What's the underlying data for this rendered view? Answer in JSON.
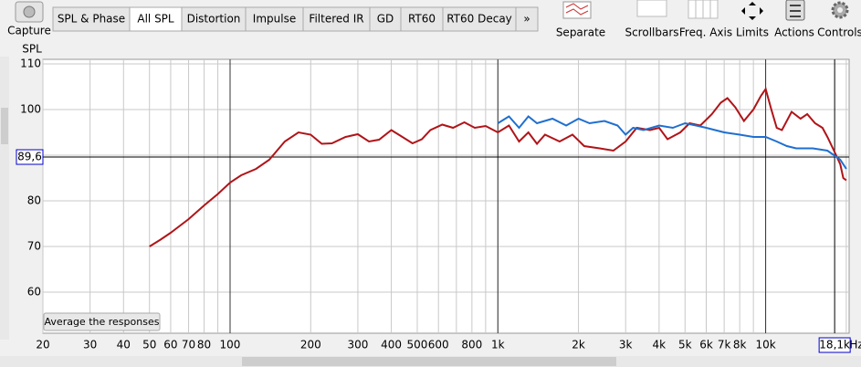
{
  "toolbar": {
    "capture": "Capture",
    "tabs": [
      "SPL & Phase",
      "All SPL",
      "Distortion",
      "Impulse",
      "Filtered IR",
      "GD",
      "RT60",
      "RT60 Decay",
      "»"
    ],
    "selected_tab": 1,
    "buttons": [
      "Separate",
      "Scrollbars",
      "Freq. Axis",
      "Limits",
      "Actions",
      "Controls"
    ]
  },
  "average_button": "Average the responses",
  "chart_data": {
    "type": "line",
    "ylabel": "SPL",
    "xunit": "Hz",
    "xscale": "log",
    "grid": true,
    "xlim": [
      20,
      20500
    ],
    "ylim": [
      51,
      111
    ],
    "yticks": [
      60,
      70,
      80,
      90,
      100,
      110
    ],
    "xticks": [
      20,
      30,
      40,
      50,
      60,
      70,
      80,
      100,
      200,
      300,
      400,
      500,
      600,
      800,
      {
        "value": 1000,
        "label": "1k"
      },
      {
        "value": 2000,
        "label": "2k"
      },
      {
        "value": 3000,
        "label": "3k"
      },
      {
        "value": 4000,
        "label": "4k"
      },
      {
        "value": 5000,
        "label": "5k"
      },
      {
        "value": 6000,
        "label": "6k"
      },
      {
        "value": 7000,
        "label": "7k"
      },
      {
        "value": 8000,
        "label": "8k"
      },
      {
        "value": 10000,
        "label": "10k"
      }
    ],
    "x_minor_gridlines": [
      90,
      700,
      900,
      9000,
      20000
    ],
    "x_major_gridlines": [
      100,
      1000,
      10000
    ],
    "cursor": {
      "x": {
        "value": 18100,
        "label": "18,1k"
      },
      "y": {
        "value": 89.6,
        "label": "89,6"
      }
    },
    "series": [
      {
        "color": "#b01418",
        "x": [
          50,
          55,
          60,
          70,
          80,
          90,
          100,
          110,
          125,
          140,
          160,
          180,
          200,
          220,
          240,
          270,
          300,
          330,
          360,
          400,
          440,
          480,
          520,
          560,
          620,
          680,
          750,
          820,
          900,
          1000,
          1100,
          1200,
          1300,
          1400,
          1500,
          1700,
          1900,
          2100,
          2400,
          2700,
          3000,
          3300,
          3700,
          4000,
          4300,
          4800,
          5200,
          5700,
          6300,
          6800,
          7200,
          7700,
          8300,
          9000,
          9600,
          10000,
          10500,
          11000,
          11500,
          12500,
          13500,
          14300,
          15300,
          16300,
          17000,
          18000,
          19000,
          19500,
          20000
        ],
        "values": [
          70,
          71.5,
          73,
          76,
          79,
          81.5,
          84,
          85.6,
          87,
          89,
          93,
          95,
          94.5,
          92.5,
          92.6,
          94,
          94.6,
          93,
          93.4,
          95.5,
          94,
          92.6,
          93.5,
          95.5,
          96.7,
          96,
          97.2,
          96,
          96.4,
          95,
          96.5,
          93,
          95,
          92.5,
          94.5,
          93,
          94.5,
          92,
          91.5,
          91,
          93,
          96,
          95.5,
          96,
          93.5,
          95,
          97,
          96.5,
          99,
          101.5,
          102.5,
          100.5,
          97.5,
          100,
          103,
          104.5,
          100,
          96,
          95.5,
          99.5,
          98,
          99,
          97,
          96,
          94,
          91,
          88,
          85,
          84.5
        ]
      },
      {
        "color": "#1f6fd0",
        "x": [
          1000,
          1100,
          1200,
          1300,
          1400,
          1600,
          1800,
          2000,
          2200,
          2500,
          2800,
          3000,
          3200,
          3500,
          4000,
          4500,
          5000,
          5500,
          6000,
          7000,
          8000,
          9000,
          10000,
          11000,
          12000,
          13000,
          14000,
          15000,
          17000,
          18000,
          19000,
          20000
        ],
        "values": [
          97,
          98.5,
          96,
          98.5,
          97,
          98,
          96.5,
          98,
          97,
          97.5,
          96.5,
          94.5,
          96,
          95.5,
          96.5,
          96,
          97,
          96.5,
          96,
          95,
          94.5,
          94,
          94,
          93,
          92,
          91.5,
          91.5,
          91.5,
          91,
          90,
          89,
          87
        ]
      }
    ]
  }
}
